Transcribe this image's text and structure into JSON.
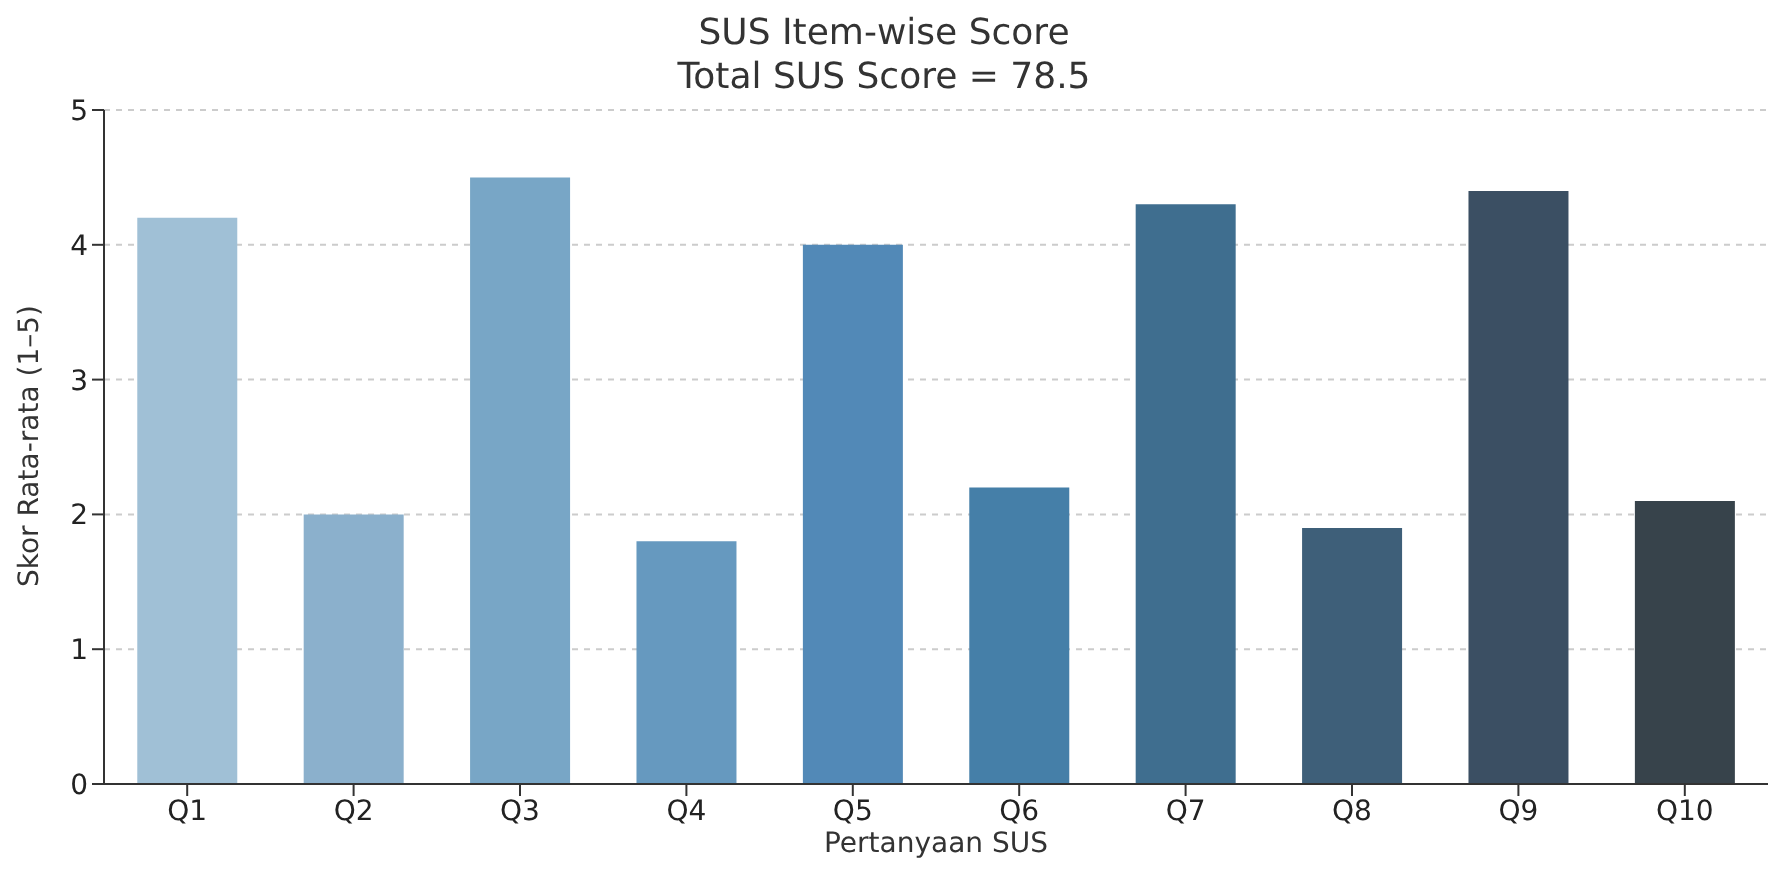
{
  "chart_data": {
    "type": "bar",
    "title": "SUS Item-wise Score",
    "subtitle": "Total SUS Score = 78.5",
    "xlabel": "Pertanyaan SUS",
    "ylabel": "Skor Rata-rata (1–5)",
    "categories": [
      "Q1",
      "Q2",
      "Q3",
      "Q4",
      "Q5",
      "Q6",
      "Q7",
      "Q8",
      "Q9",
      "Q10"
    ],
    "values": [
      4.2,
      2.0,
      4.5,
      1.8,
      4.0,
      2.2,
      4.3,
      1.9,
      4.4,
      2.1
    ],
    "colors": [
      "#a0c0d6",
      "#8bb0cc",
      "#78a6c6",
      "#6699bf",
      "#5289b7",
      "#457fa8",
      "#3f6e8f",
      "#3e5f79",
      "#3b4f63",
      "#37434b"
    ],
    "ylim": [
      0,
      5
    ],
    "yticks": [
      0,
      1,
      2,
      3,
      4,
      5
    ],
    "grid": "y"
  }
}
